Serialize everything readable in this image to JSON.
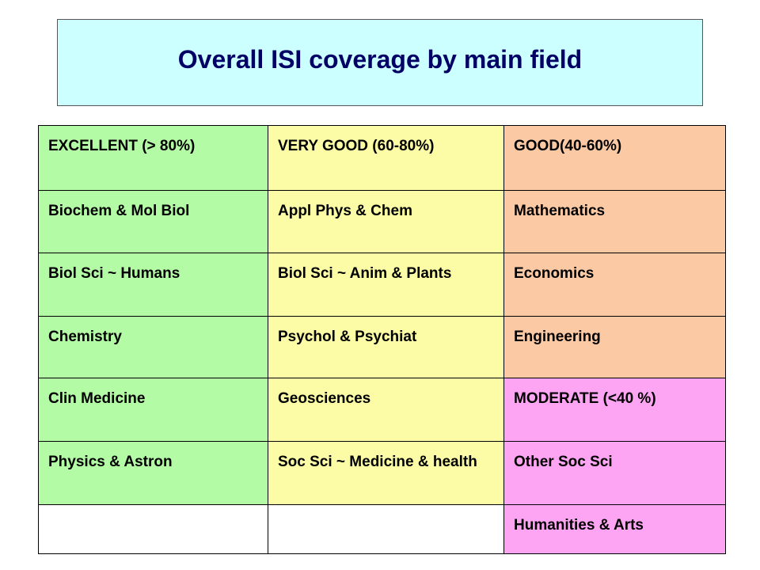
{
  "title": "Overall ISI coverage by main field",
  "table": {
    "headers": [
      "EXCELLENT (> 80%)",
      "VERY GOOD (60-80%)",
      "GOOD(40-60%)"
    ],
    "rows": [
      [
        "Biochem & Mol Biol",
        "Appl Phys & Chem",
        "Mathematics"
      ],
      [
        "Biol Sci ~ Humans",
        "Biol Sci ~ Anim & Plants",
        "Economics"
      ],
      [
        "Chemistry",
        "Psychol & Psychiat",
        "Engineering"
      ],
      [
        "Clin Medicine",
        "Geosciences",
        "MODERATE (<40 %)"
      ],
      [
        "Physics & Astron",
        "Soc Sci ~ Medicine & health",
        "Other Soc Sci"
      ],
      [
        "",
        "",
        "Humanities & Arts"
      ]
    ]
  },
  "colors": {
    "title_bg": "#ccffff",
    "title_text": "#000066",
    "excellent": "#b3fba5",
    "very_good": "#fcfca6",
    "good": "#fbc9a4",
    "moderate": "#fda5f3"
  }
}
